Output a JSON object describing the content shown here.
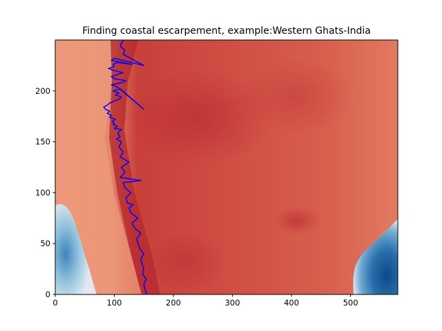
{
  "chart_data": {
    "type": "heatmap",
    "title": "Finding coastal escarpement, example:Western Ghats-India",
    "xlabel": "",
    "ylabel": "",
    "xlim": [
      0,
      580
    ],
    "ylim": [
      0,
      250
    ],
    "x_ticks": [
      0,
      100,
      200,
      300,
      400,
      500
    ],
    "y_ticks": [
      0,
      50,
      100,
      150,
      200
    ],
    "colormap": "RdBu",
    "grid": false,
    "overlay_series": {
      "color": "#0000ff",
      "x": [
        155,
        152,
        150,
        154,
        148,
        150,
        147,
        145,
        150,
        143,
        140,
        138,
        145,
        135,
        130,
        140,
        128,
        125,
        132,
        122,
        120,
        128,
        118,
        115,
        145,
        110,
        118,
        112,
        125,
        110,
        115,
        108,
        112,
        104,
        110,
        106,
        108,
        112,
        100,
        105,
        98,
        100,
        96,
        102,
        92,
        95,
        88,
        92,
        85,
        82,
        88,
        92,
        100,
        108,
        112,
        102,
        108,
        98,
        110,
        150,
        105,
        95,
        112,
        120,
        100,
        95,
        105,
        115,
        100,
        90,
        100,
        98,
        105,
        130,
        95,
        100,
        150,
        115,
        118,
        110,
        112,
        116
      ],
      "y": [
        0,
        5,
        10,
        15,
        20,
        25,
        30,
        35,
        40,
        45,
        50,
        55,
        60,
        65,
        70,
        75,
        80,
        85,
        88,
        90,
        95,
        100,
        105,
        110,
        112,
        115,
        120,
        125,
        130,
        135,
        140,
        145,
        150,
        153,
        155,
        158,
        160,
        162,
        163,
        165,
        167,
        168,
        170,
        172,
        174,
        176,
        178,
        180,
        182,
        184,
        186,
        188,
        190,
        192,
        194,
        196,
        198,
        200,
        202,
        182,
        204,
        206,
        208,
        210,
        212,
        214,
        216,
        218,
        220,
        222,
        224,
        226,
        228,
        226,
        230,
        232,
        225,
        236,
        240,
        244,
        247,
        250
      ]
    }
  }
}
